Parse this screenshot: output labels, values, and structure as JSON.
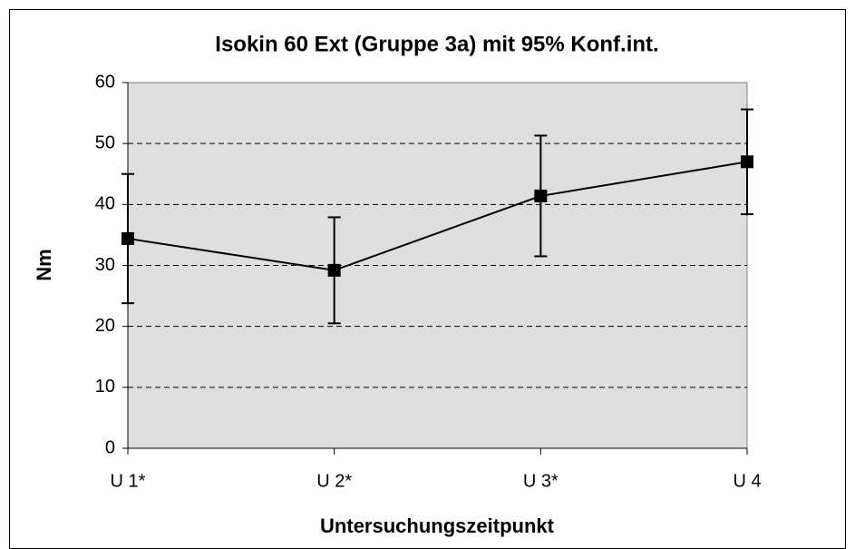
{
  "chart_data": {
    "type": "line",
    "title": "Isokin 60 Ext (Gruppe 3a) mit 95% Konf.int.",
    "xlabel": "Untersuchungszeitpunkt",
    "ylabel": "Nm",
    "categories": [
      "U 1*",
      "U 2*",
      "U 3*",
      "U 4"
    ],
    "values": [
      34.4,
      29.2,
      41.4,
      47.0
    ],
    "errors": [
      10.6,
      8.7,
      9.9,
      8.6
    ],
    "color": "#000000",
    "ylim": [
      0,
      60
    ],
    "yticks": [
      0,
      10,
      20,
      30,
      40,
      50,
      60
    ],
    "grid": true
  }
}
